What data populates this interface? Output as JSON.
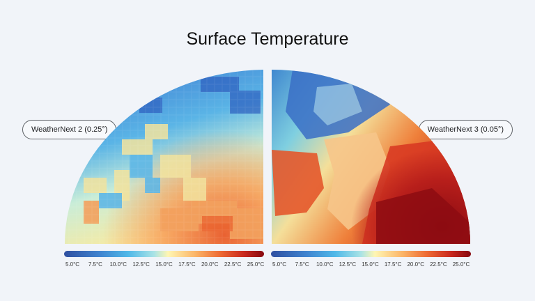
{
  "title": "Surface Temperature",
  "left_panel": {
    "label": "WeatherNext 2 (0.25°)"
  },
  "right_panel": {
    "label": "WeatherNext 3 (0.05°)"
  },
  "colorbar": {
    "ticks": [
      "5.0°C",
      "7.5°C",
      "10.0°C",
      "12.5°C",
      "15.0°C",
      "17.5°C",
      "20.0°C",
      "22.5°C",
      "25.0°C"
    ],
    "colors": [
      "#2f4fa0",
      "#3f84d0",
      "#4fb8e8",
      "#a9e3e6",
      "#fff6b3",
      "#fbb366",
      "#ee6a33",
      "#c9281e",
      "#86080f"
    ]
  }
}
